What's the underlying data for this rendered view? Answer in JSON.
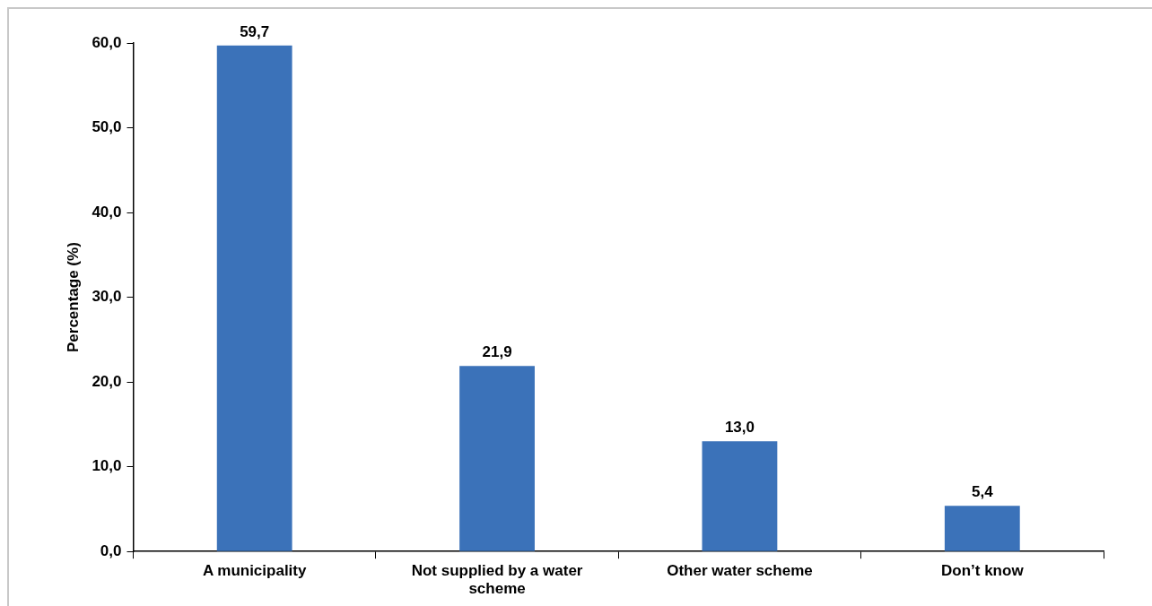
{
  "chart_data": {
    "type": "bar",
    "ylabel": "Percentage (%)",
    "categories": [
      "A municipality",
      "Not supplied by a water scheme",
      "Other water scheme",
      "Don’t know"
    ],
    "values": [
      59.7,
      21.9,
      13.0,
      5.4
    ],
    "value_labels": [
      "59,7",
      "21,9",
      "13,0",
      "5,4"
    ],
    "color": "#3b72b9",
    "ylim": [
      0,
      60
    ],
    "yticks": [
      {
        "value": 0,
        "label": "0,0"
      },
      {
        "value": 10,
        "label": "10,0"
      },
      {
        "value": 20,
        "label": "20,0"
      },
      {
        "value": 30,
        "label": "30,0"
      },
      {
        "value": 40,
        "label": "40,0"
      },
      {
        "value": 50,
        "label": "50,0"
      },
      {
        "value": 60,
        "label": "60,0"
      }
    ],
    "grid": false,
    "legend": false
  }
}
